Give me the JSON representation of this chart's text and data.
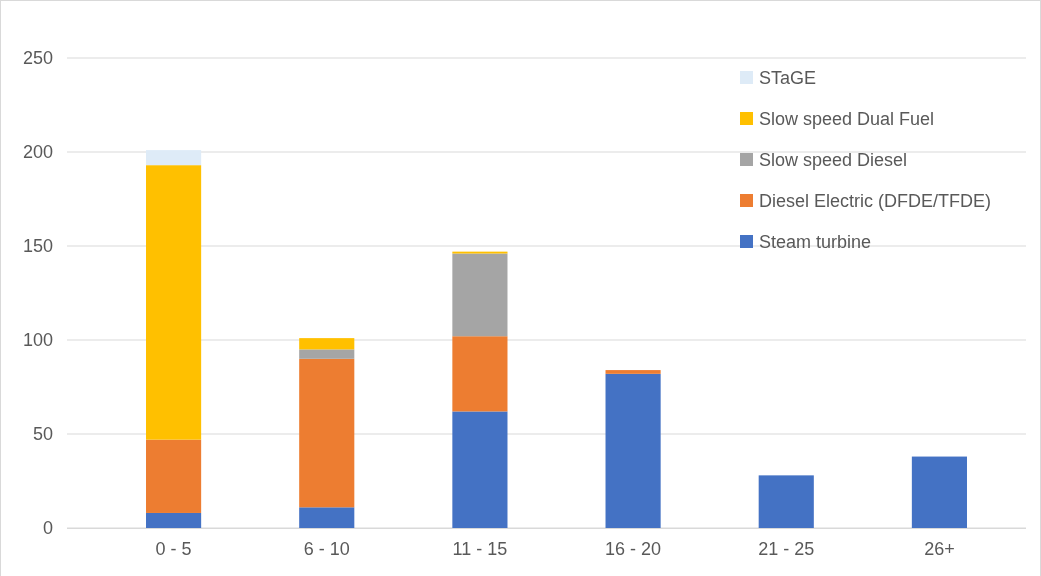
{
  "chart_data": {
    "type": "bar",
    "stacked": true,
    "categories": [
      "0 - 5",
      "6 - 10",
      "11 - 15",
      "16 - 20",
      "21 - 25",
      "26+"
    ],
    "series": [
      {
        "name": "Steam turbine",
        "color": "#4472c4",
        "values": [
          8,
          11,
          62,
          82,
          28,
          38
        ]
      },
      {
        "name": "Diesel Electric (DFDE/TFDE)",
        "color": "#ed7d31",
        "values": [
          39,
          79,
          40,
          2,
          null,
          null
        ]
      },
      {
        "name": "Slow speed Diesel",
        "color": "#a5a5a5",
        "values": [
          null,
          5,
          44,
          null,
          null,
          null
        ]
      },
      {
        "name": "Slow speed Dual Fuel",
        "color": "#ffc000",
        "values": [
          146,
          6,
          1,
          null,
          null,
          null
        ]
      },
      {
        "name": "STaGE",
        "color": "#deebf7",
        "values": [
          8,
          null,
          null,
          null,
          null,
          null
        ]
      }
    ],
    "ylim": [
      0,
      250
    ],
    "yticks": [
      0,
      50,
      100,
      150,
      200,
      250
    ],
    "grid": "y",
    "legend": "top right"
  }
}
